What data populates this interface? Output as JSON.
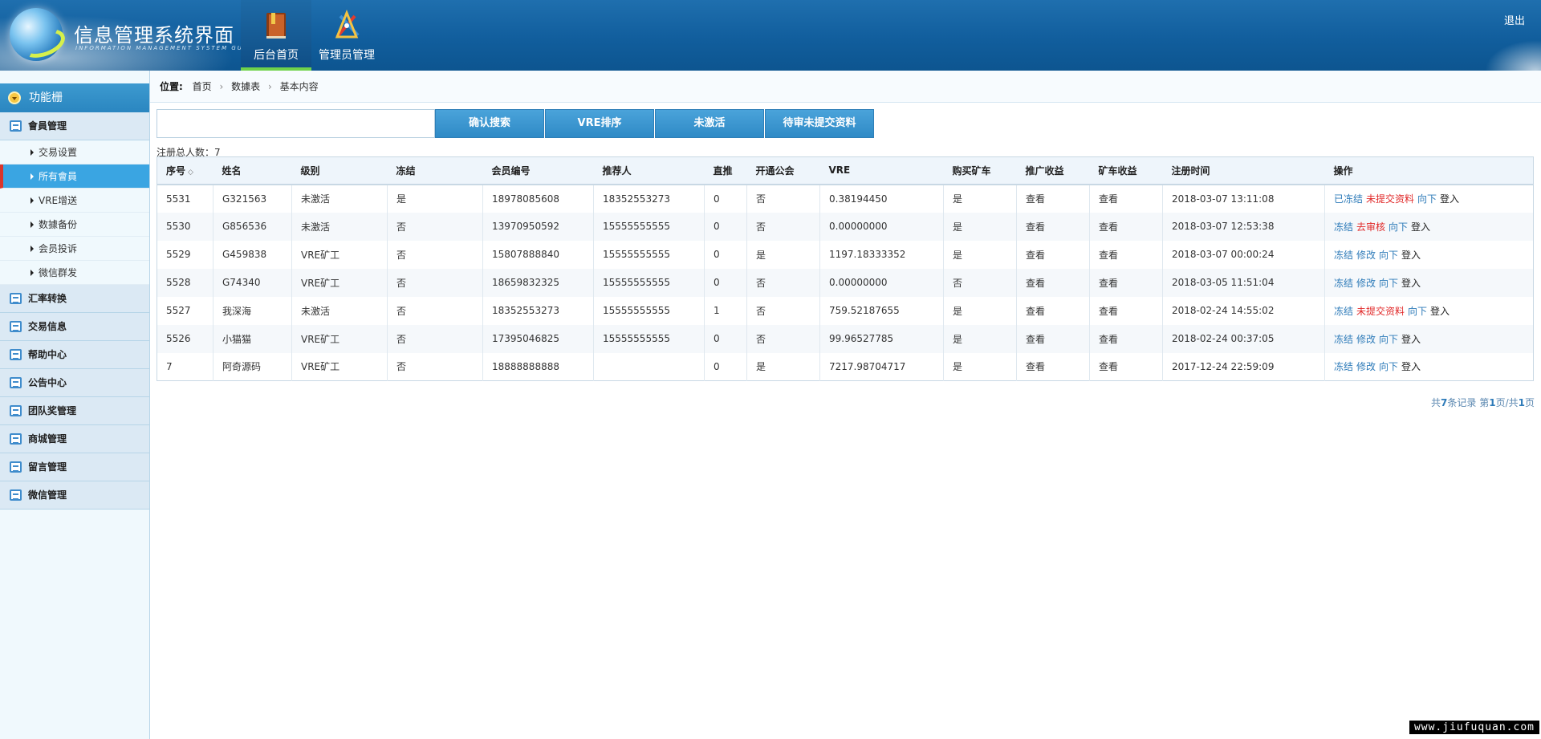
{
  "header": {
    "title": "信息管理系统界面",
    "subtitle": "INFORMATION MANAGEMENT SYSTEM GUI",
    "tabs": [
      {
        "label": "后台首页",
        "icon": "book-icon",
        "active": true
      },
      {
        "label": "管理员管理",
        "icon": "tools-icon",
        "active": false
      }
    ],
    "logout": "退出"
  },
  "sidebar": {
    "title": "功能栅",
    "groups": [
      {
        "label": "會員管理",
        "icon": "list-icon",
        "items": [
          {
            "label": "交易设置",
            "active": false
          },
          {
            "label": "所有會員",
            "active": true
          },
          {
            "label": "VRE增送",
            "active": false
          },
          {
            "label": "数據备份",
            "active": false
          },
          {
            "label": "会员投诉",
            "active": false
          },
          {
            "label": "微信群发",
            "active": false
          }
        ]
      },
      {
        "label": "汇率转换",
        "icon": "chat-icon"
      },
      {
        "label": "交易信息",
        "icon": "list-icon"
      },
      {
        "label": "帮助中心",
        "icon": "edit-icon"
      },
      {
        "label": "公告中心",
        "icon": "edit-icon"
      },
      {
        "label": "团队奖管理",
        "icon": "calendar-icon"
      },
      {
        "label": "商城管理",
        "icon": "calendar-icon"
      },
      {
        "label": "留言管理",
        "icon": "edit-icon"
      },
      {
        "label": "微信管理",
        "icon": "chat-icon"
      }
    ]
  },
  "breadcrumb": {
    "label": "位置:",
    "items": [
      "首页",
      "数據表",
      "基本内容"
    ]
  },
  "toolbar": {
    "search_value": "",
    "buttons": [
      "确认搜索",
      "VRE排序",
      "未激活",
      "待审未提交资料"
    ]
  },
  "total": "注册总人数：7",
  "table": {
    "columns": [
      "序号",
      "姓名",
      "级别",
      "冻结",
      "会员编号",
      "推荐人",
      "直推",
      "开通公会",
      "VRE",
      "购买矿车",
      "推广收益",
      "矿车收益",
      "注册时间",
      "操作"
    ],
    "sort_icon": "sort-icon",
    "rows": [
      {
        "id": "5531",
        "name": "G321563",
        "level": "未激活",
        "level_red": true,
        "frozen": "是",
        "frozen_red": true,
        "member_no": "18978085608",
        "referrer": "18352553273",
        "direct": "0",
        "guild": "否",
        "vre": "0.38194450",
        "buy": "是",
        "promo": "查看",
        "cart": "查看",
        "time": "2018-03-07 13:11:08",
        "ops": [
          {
            "t": "已冻结",
            "c": "blue"
          },
          {
            "t": "未提交资料",
            "c": "red"
          },
          {
            "t": "向下",
            "c": "blue"
          },
          {
            "t": "登入",
            "c": "dark"
          }
        ]
      },
      {
        "id": "5530",
        "name": "G856536",
        "level": "未激活",
        "level_red": true,
        "frozen": "否",
        "frozen_red": false,
        "member_no": "13970950592",
        "referrer": "15555555555",
        "direct": "0",
        "guild": "否",
        "vre": "0.00000000",
        "buy": "是",
        "promo": "查看",
        "cart": "查看",
        "time": "2018-03-07 12:53:38",
        "ops": [
          {
            "t": "冻结",
            "c": "blue"
          },
          {
            "t": "去审核",
            "c": "red"
          },
          {
            "t": "向下",
            "c": "blue"
          },
          {
            "t": "登入",
            "c": "dark"
          }
        ]
      },
      {
        "id": "5529",
        "name": "G459838",
        "level": "VRE矿工",
        "level_red": false,
        "frozen": "否",
        "frozen_red": false,
        "member_no": "15807888840",
        "referrer": "15555555555",
        "direct": "0",
        "guild": "是",
        "vre": "1197.18333352",
        "buy": "是",
        "promo": "查看",
        "cart": "查看",
        "time": "2018-03-07 00:00:24",
        "ops": [
          {
            "t": "冻结",
            "c": "blue"
          },
          {
            "t": "修改",
            "c": "blue"
          },
          {
            "t": "向下",
            "c": "blue"
          },
          {
            "t": "登入",
            "c": "dark"
          }
        ]
      },
      {
        "id": "5528",
        "name": "G74340",
        "level": "VRE矿工",
        "level_red": false,
        "frozen": "否",
        "frozen_red": false,
        "member_no": "18659832325",
        "referrer": "15555555555",
        "direct": "0",
        "guild": "否",
        "vre": "0.00000000",
        "buy": "否",
        "promo": "查看",
        "cart": "查看",
        "time": "2018-03-05 11:51:04",
        "ops": [
          {
            "t": "冻结",
            "c": "blue"
          },
          {
            "t": "修改",
            "c": "blue"
          },
          {
            "t": "向下",
            "c": "blue"
          },
          {
            "t": "登入",
            "c": "dark"
          }
        ]
      },
      {
        "id": "5527",
        "name": "我深海",
        "level": "未激活",
        "level_red": true,
        "frozen": "否",
        "frozen_red": false,
        "member_no": "18352553273",
        "referrer": "15555555555",
        "direct": "1",
        "guild": "否",
        "vre": "759.52187655",
        "buy": "是",
        "promo": "查看",
        "cart": "查看",
        "time": "2018-02-24 14:55:02",
        "ops": [
          {
            "t": "冻结",
            "c": "blue"
          },
          {
            "t": "未提交资料",
            "c": "red"
          },
          {
            "t": "向下",
            "c": "blue"
          },
          {
            "t": "登入",
            "c": "dark"
          }
        ]
      },
      {
        "id": "5526",
        "name": "小猫猫",
        "level": "VRE矿工",
        "level_red": false,
        "frozen": "否",
        "frozen_red": false,
        "member_no": "17395046825",
        "referrer": "15555555555",
        "direct": "0",
        "guild": "否",
        "vre": "99.96527785",
        "buy": "是",
        "promo": "查看",
        "cart": "查看",
        "time": "2018-02-24 00:37:05",
        "ops": [
          {
            "t": "冻结",
            "c": "blue"
          },
          {
            "t": "修改",
            "c": "blue"
          },
          {
            "t": "向下",
            "c": "blue"
          },
          {
            "t": "登入",
            "c": "dark"
          }
        ]
      },
      {
        "id": "7",
        "name": "阿奇源码",
        "level": "VRE矿工",
        "level_red": false,
        "frozen": "否",
        "frozen_red": false,
        "member_no": "18888888888",
        "referrer": "",
        "direct": "0",
        "guild": "是",
        "vre": "7217.98704717",
        "buy": "是",
        "promo": "查看",
        "cart": "查看",
        "time": "2017-12-24 22:59:09",
        "ops": [
          {
            "t": "冻结",
            "c": "blue"
          },
          {
            "t": "修改",
            "c": "blue"
          },
          {
            "t": "向下",
            "c": "blue"
          },
          {
            "t": "登入",
            "c": "dark"
          }
        ]
      }
    ]
  },
  "pager": {
    "prefix": "共",
    "records": "7",
    "mid": "条记录 第",
    "page": "1",
    "sep": "页/共",
    "pages": "1",
    "suffix": "页"
  },
  "watermark": "www.jiufuquan.com",
  "colors": {
    "header_blue": "#115e9d",
    "accent_blue": "#2e7bb9",
    "red": "#e12a2a",
    "active_green": "#6fd24a"
  }
}
